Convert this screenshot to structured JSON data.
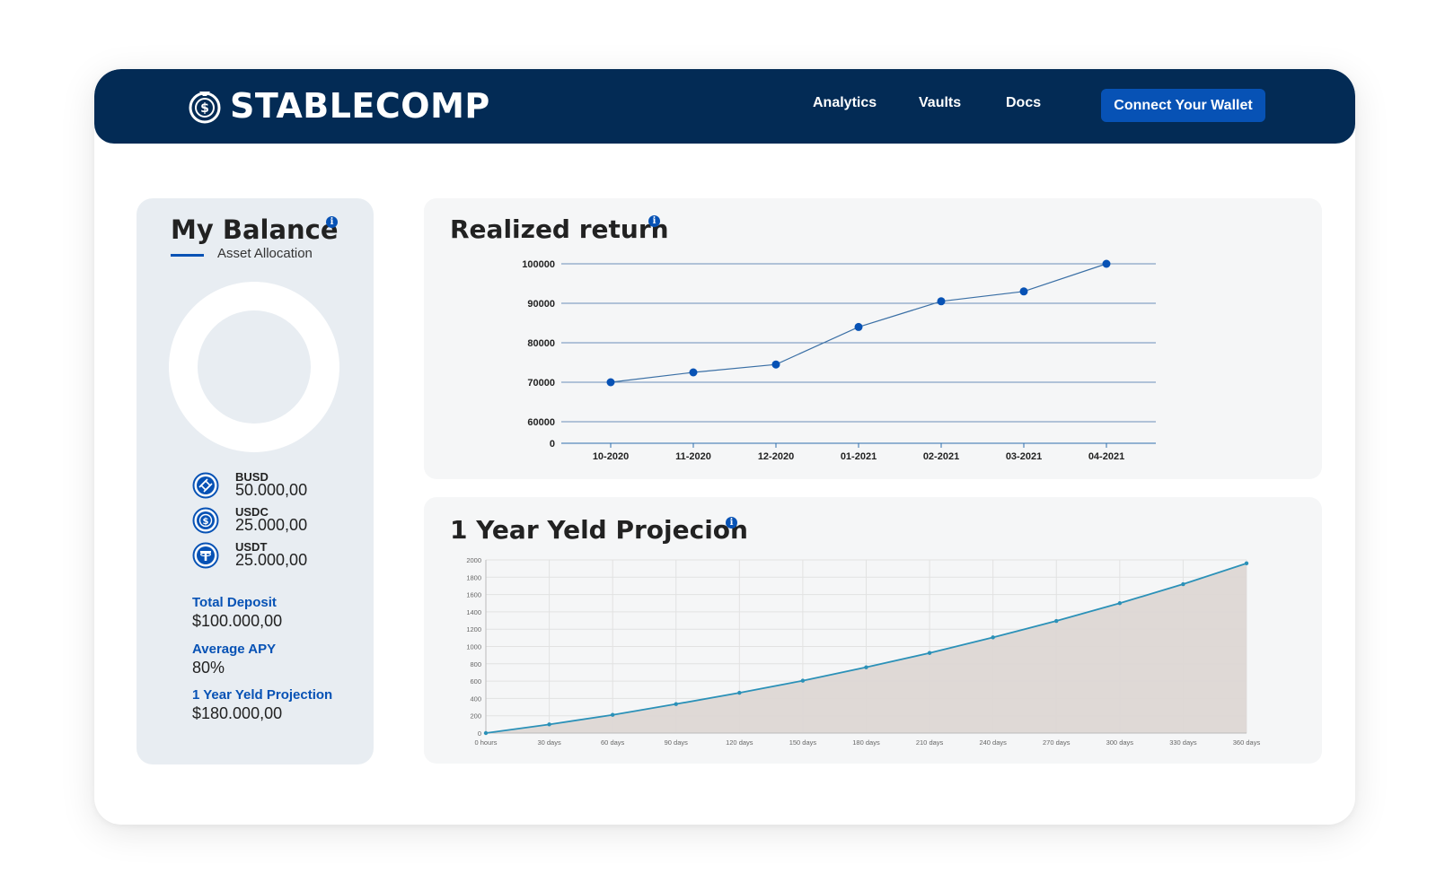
{
  "navbar": {
    "brand": "STABLECOMP",
    "links": [
      "Analytics",
      "Vaults",
      "Docs"
    ],
    "wallet_button": "Connect Your Wallet"
  },
  "balance": {
    "title": "My Balance",
    "subtitle": "Asset Allocation",
    "assets": [
      {
        "name": "BUSD",
        "value": "50.000,00",
        "icon": "busd-icon"
      },
      {
        "name": "USDC",
        "value": "25.000,00",
        "icon": "usdc-icon"
      },
      {
        "name": "USDT",
        "value": "25.000,00",
        "icon": "usdt-icon"
      }
    ],
    "stats": [
      {
        "label": "Total Deposit",
        "value": "$100.000,00"
      },
      {
        "label": "Average APY",
        "value": "80%"
      },
      {
        "label": "1 Year Yeld Projection",
        "value": "$180.000,00"
      }
    ]
  },
  "colors": {
    "navy": "#032b55",
    "accent": "#0752b5",
    "line_blue": "#2b91b8",
    "area_fill": "#ddd7d4"
  },
  "chart_data": [
    {
      "type": "line",
      "title": "Realized return",
      "categories": [
        "10-2020",
        "11-2020",
        "12-2020",
        "01-2021",
        "02-2021",
        "03-2021",
        "04-2021"
      ],
      "values": [
        70000,
        72500,
        74500,
        84000,
        90500,
        93000,
        100000
      ],
      "yticks": [
        "0",
        "60000",
        "70000",
        "80000",
        "90000",
        "100000"
      ],
      "grid": true
    },
    {
      "type": "area",
      "title": "1 Year Yeld Projecion",
      "categories": [
        "0 hours",
        "30 days",
        "60 days",
        "90 days",
        "120 days",
        "150 days",
        "180 days",
        "210 days",
        "240 days",
        "270 days",
        "300 days",
        "330 days",
        "360 days"
      ],
      "values": [
        0,
        100,
        210,
        335,
        465,
        605,
        760,
        925,
        1105,
        1295,
        1500,
        1720,
        1960
      ],
      "ylim": [
        0,
        2000
      ],
      "yticks": [
        "0",
        "200",
        "400",
        "600",
        "800",
        "1000",
        "1200",
        "1400",
        "1600",
        "1800",
        "2000"
      ],
      "grid": true
    }
  ]
}
